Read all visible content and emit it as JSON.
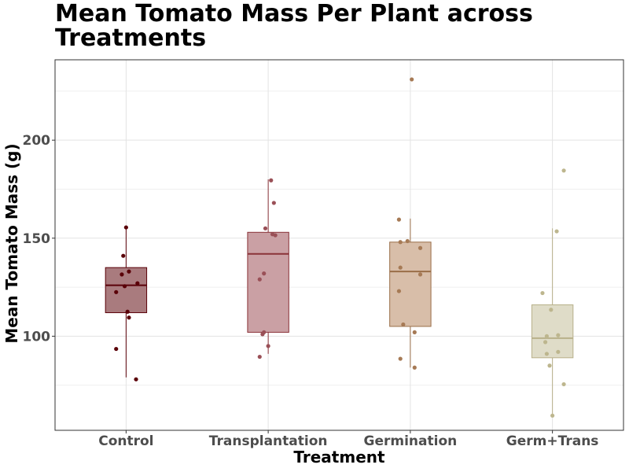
{
  "chart_data": {
    "type": "box",
    "title": "Mean Tomato Mass Per Plant across Treatments",
    "xlabel": "Treatment",
    "ylabel": "Mean Tomato Mass (g)",
    "ylim": [
      52,
      241
    ],
    "yticks": [
      100,
      150,
      200
    ],
    "grid": true,
    "legend": "none",
    "categories": [
      "Control",
      "Transplantation",
      "Germination",
      "Germ+Trans"
    ],
    "colors": {
      "Control": {
        "fill": "#a97b7e",
        "line": "#5a0008",
        "point": "#5a0008"
      },
      "Transplantation": {
        "fill": "#caa0a4",
        "line": "#8a3238",
        "point": "#9a5057"
      },
      "Germination": {
        "fill": "#d8bea9",
        "line": "#9a6e48",
        "point": "#a67a55"
      },
      "Germ+Trans": {
        "fill": "#dfdcc8",
        "line": "#b8b08a",
        "point": "#bdb68e"
      }
    },
    "boxes": [
      {
        "category": "Control",
        "whisker_low": 79,
        "q1": 112,
        "median": 126,
        "q3": 135,
        "whisker_high": 156
      },
      {
        "category": "Transplantation",
        "whisker_low": 91,
        "q1": 102,
        "median": 142,
        "q3": 153,
        "whisker_high": 180
      },
      {
        "category": "Germination",
        "whisker_low": 84,
        "q1": 105,
        "median": 133,
        "q3": 148,
        "whisker_high": 160
      },
      {
        "category": "Germ+Trans",
        "whisker_low": 60,
        "q1": 89,
        "median": 99,
        "q3": 116,
        "whisker_high": 155
      }
    ],
    "points": {
      "Control": [
        {
          "dx": 0.0,
          "y": 155.5
        },
        {
          "dx": -0.02,
          "y": 141
        },
        {
          "dx": -0.03,
          "y": 131.5
        },
        {
          "dx": 0.02,
          "y": 133
        },
        {
          "dx": 0.08,
          "y": 127
        },
        {
          "dx": -0.01,
          "y": 125.5
        },
        {
          "dx": -0.07,
          "y": 122.5
        },
        {
          "dx": 0.01,
          "y": 112.5
        },
        {
          "dx": 0.02,
          "y": 109.5
        },
        {
          "dx": -0.07,
          "y": 93.5
        },
        {
          "dx": 0.07,
          "y": 78
        }
      ],
      "Transplantation": [
        {
          "dx": 0.02,
          "y": 179.5
        },
        {
          "dx": 0.04,
          "y": 168
        },
        {
          "dx": -0.02,
          "y": 155
        },
        {
          "dx": 0.03,
          "y": 152
        },
        {
          "dx": 0.05,
          "y": 151.5
        },
        {
          "dx": -0.03,
          "y": 132
        },
        {
          "dx": -0.06,
          "y": 129
        },
        {
          "dx": -0.03,
          "y": 102
        },
        {
          "dx": -0.04,
          "y": 101
        },
        {
          "dx": 0.0,
          "y": 95
        },
        {
          "dx": -0.06,
          "y": 89.5
        }
      ],
      "Germination": [
        {
          "dx": 0.01,
          "y": 231
        },
        {
          "dx": -0.08,
          "y": 159.5
        },
        {
          "dx": -0.02,
          "y": 148.5
        },
        {
          "dx": -0.07,
          "y": 148
        },
        {
          "dx": 0.07,
          "y": 145
        },
        {
          "dx": -0.07,
          "y": 135
        },
        {
          "dx": 0.07,
          "y": 131.5
        },
        {
          "dx": -0.08,
          "y": 123
        },
        {
          "dx": -0.05,
          "y": 106
        },
        {
          "dx": 0.03,
          "y": 102
        },
        {
          "dx": -0.07,
          "y": 88.5
        },
        {
          "dx": 0.03,
          "y": 84
        }
      ],
      "Germ+Trans": [
        {
          "dx": 0.08,
          "y": 184.5
        },
        {
          "dx": 0.03,
          "y": 153.5
        },
        {
          "dx": -0.07,
          "y": 122
        },
        {
          "dx": -0.01,
          "y": 113.5
        },
        {
          "dx": -0.04,
          "y": 100
        },
        {
          "dx": 0.04,
          "y": 100.5
        },
        {
          "dx": -0.05,
          "y": 97
        },
        {
          "dx": 0.04,
          "y": 92
        },
        {
          "dx": -0.04,
          "y": 91
        },
        {
          "dx": -0.02,
          "y": 85
        },
        {
          "dx": 0.08,
          "y": 75.5
        },
        {
          "dx": 0.0,
          "y": 59.5
        }
      ]
    }
  }
}
